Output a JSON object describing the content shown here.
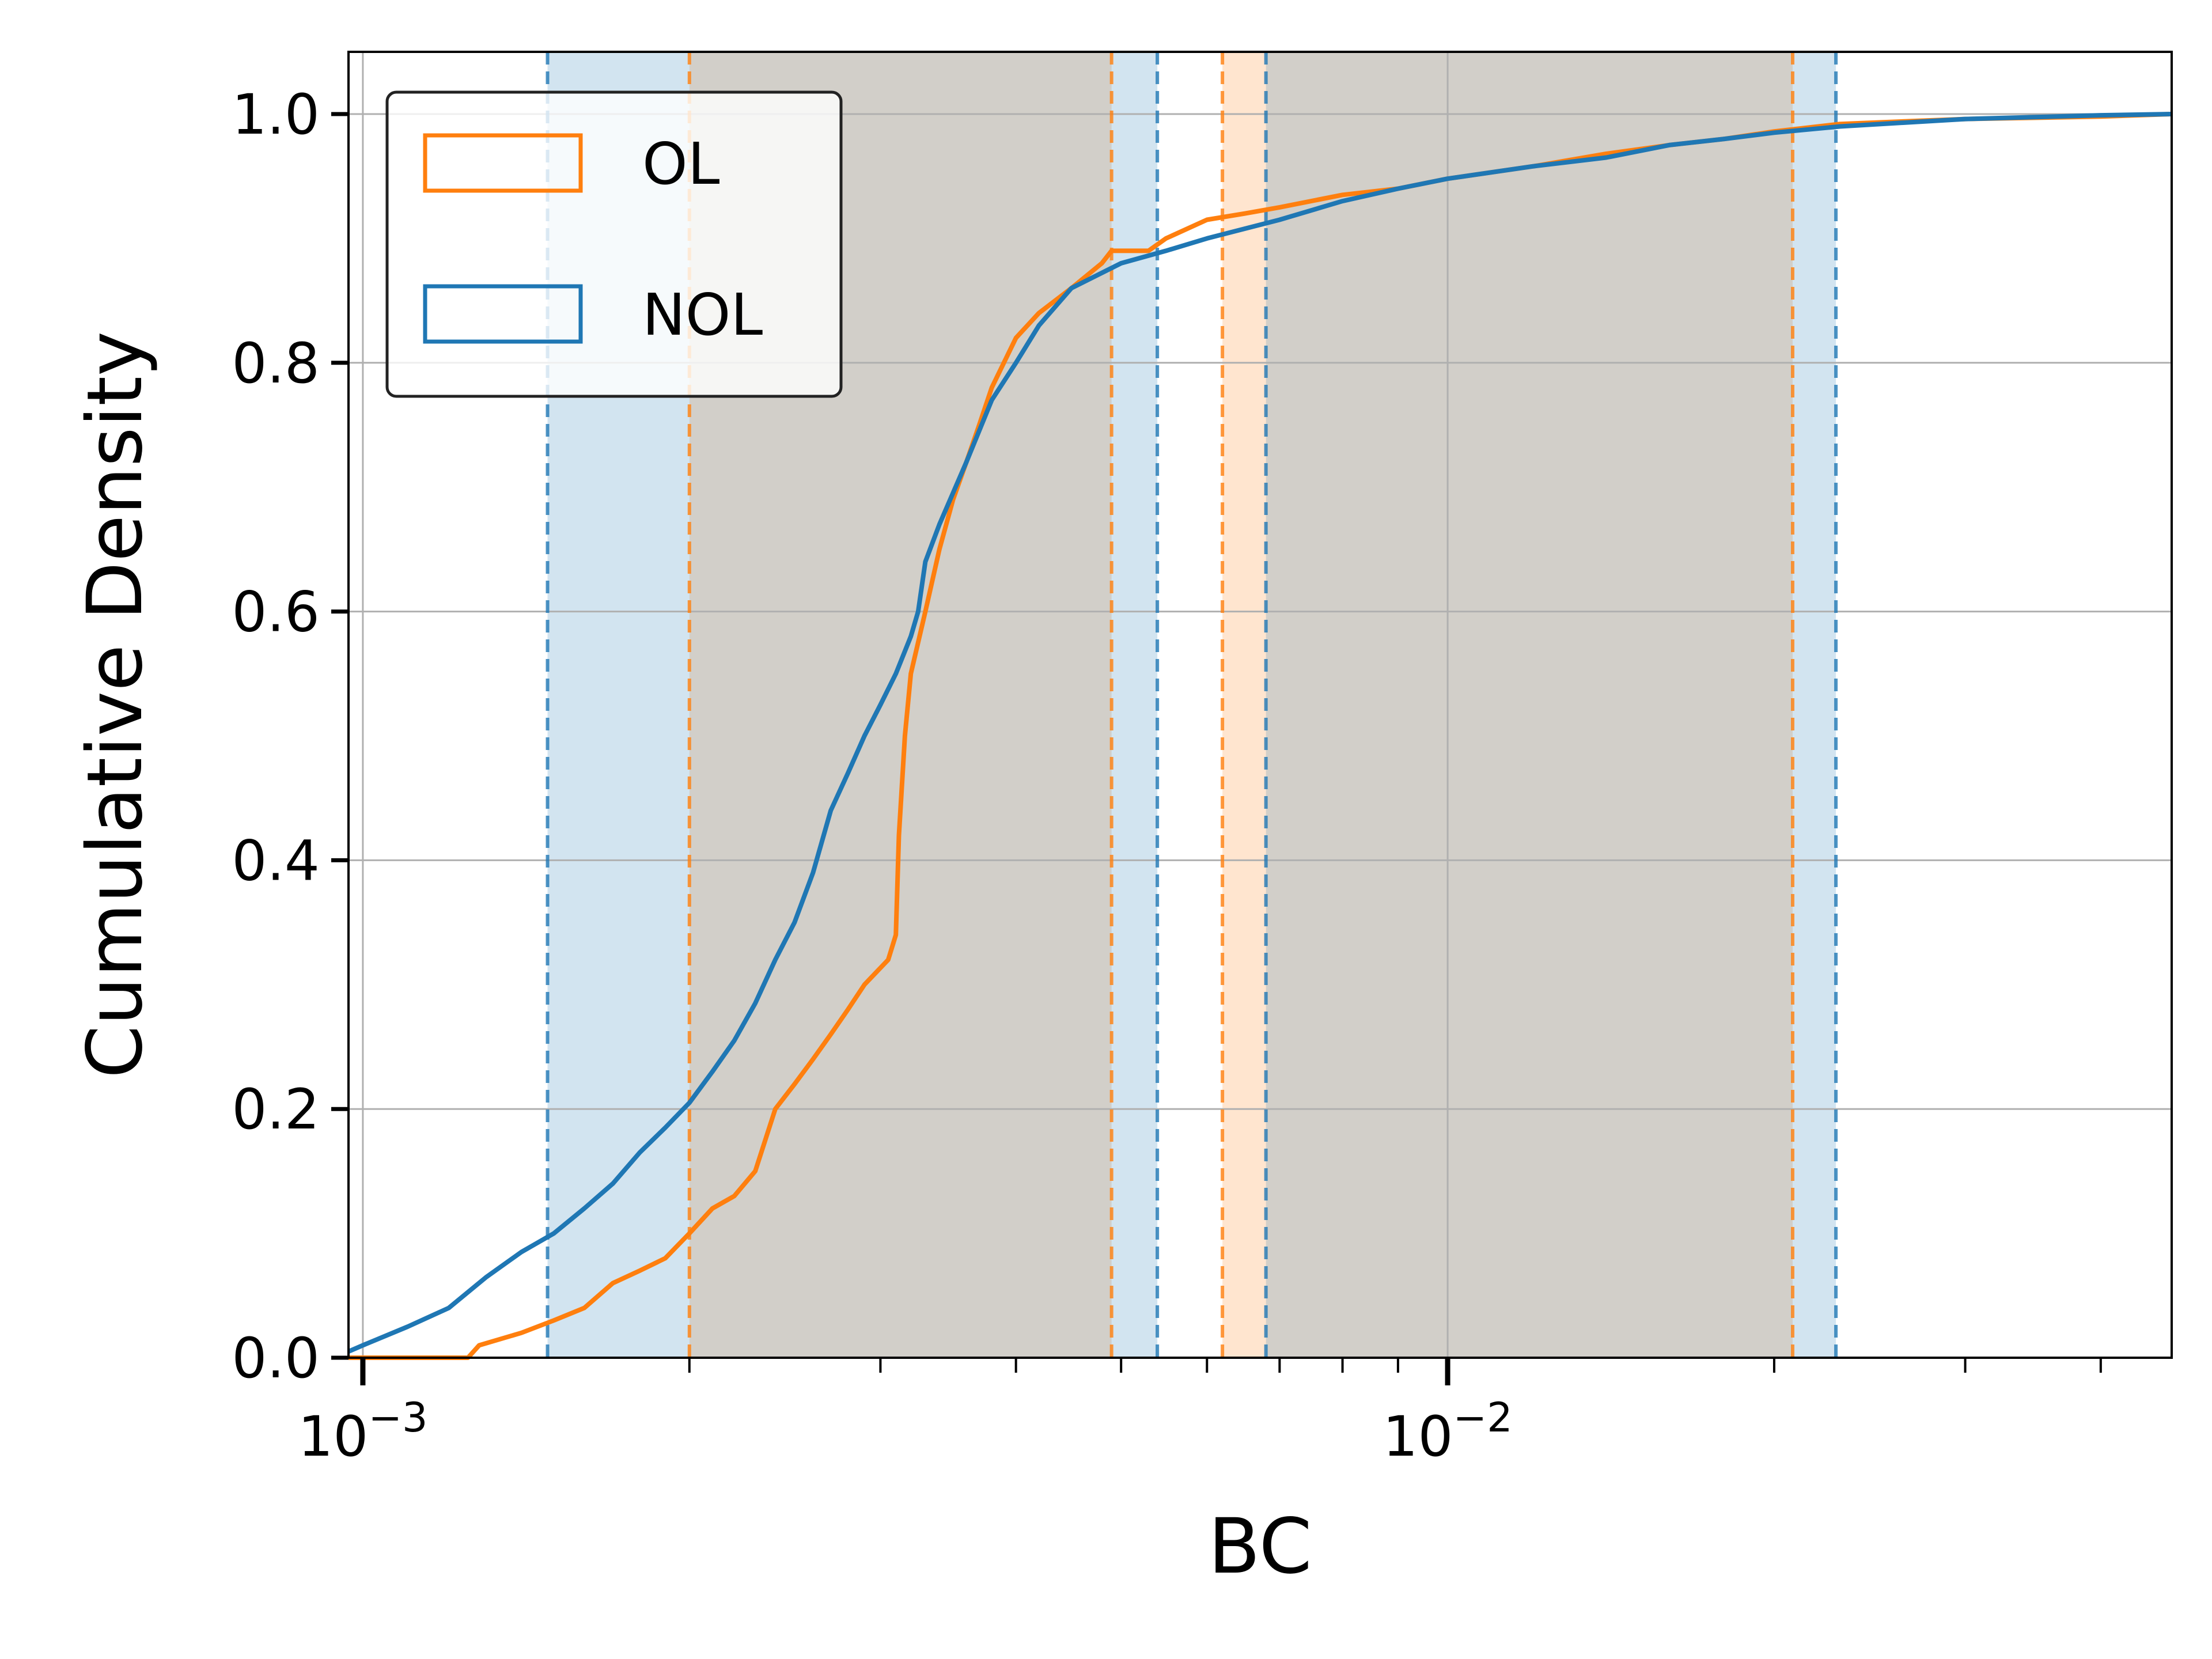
{
  "chart_data": {
    "type": "line",
    "xlabel": "BC",
    "ylabel": "Cumulative Density",
    "xscale": "log",
    "xlim": [
      0.00097,
      0.0465
    ],
    "ylim": [
      0,
      1.05
    ],
    "xticks": [
      {
        "value": 0.001,
        "base": "10",
        "exp": "−3"
      },
      {
        "value": 0.01,
        "base": "10",
        "exp": "−2"
      }
    ],
    "yticks": [
      {
        "value": 0.0,
        "label": "0.0"
      },
      {
        "value": 0.2,
        "label": "0.2"
      },
      {
        "value": 0.4,
        "label": "0.4"
      },
      {
        "value": 0.6,
        "label": "0.6"
      },
      {
        "value": 0.8,
        "label": "0.8"
      },
      {
        "value": 1.0,
        "label": "1.0"
      }
    ],
    "grid": true,
    "legend_position": "top-left",
    "series": [
      {
        "name": "OL",
        "color": "#ff7f0e",
        "bands": [
          [
            0.002,
            0.0049
          ],
          [
            0.0062,
            0.0208
          ]
        ],
        "points": [
          [
            0.00097,
            0.0
          ],
          [
            0.00125,
            0.0
          ],
          [
            0.00128,
            0.01
          ],
          [
            0.0014,
            0.02
          ],
          [
            0.0015,
            0.03
          ],
          [
            0.0016,
            0.04
          ],
          [
            0.0017,
            0.06
          ],
          [
            0.0018,
            0.07
          ],
          [
            0.0019,
            0.08
          ],
          [
            0.002,
            0.1
          ],
          [
            0.0021,
            0.12
          ],
          [
            0.0022,
            0.13
          ],
          [
            0.0023,
            0.15
          ],
          [
            0.0024,
            0.2
          ],
          [
            0.0025,
            0.22
          ],
          [
            0.0026,
            0.24
          ],
          [
            0.0027,
            0.26
          ],
          [
            0.0028,
            0.28
          ],
          [
            0.0029,
            0.3
          ],
          [
            0.00305,
            0.32
          ],
          [
            0.0031,
            0.34
          ],
          [
            0.00312,
            0.42
          ],
          [
            0.00316,
            0.5
          ],
          [
            0.0032,
            0.55
          ],
          [
            0.0033,
            0.6
          ],
          [
            0.0034,
            0.65
          ],
          [
            0.0035,
            0.69
          ],
          [
            0.0036,
            0.72
          ],
          [
            0.0037,
            0.75
          ],
          [
            0.0038,
            0.78
          ],
          [
            0.004,
            0.82
          ],
          [
            0.0042,
            0.84
          ],
          [
            0.0045,
            0.86
          ],
          [
            0.0048,
            0.88
          ],
          [
            0.0049,
            0.89
          ],
          [
            0.0053,
            0.89
          ],
          [
            0.0055,
            0.9
          ],
          [
            0.006,
            0.915
          ],
          [
            0.0065,
            0.92
          ],
          [
            0.007,
            0.925
          ],
          [
            0.008,
            0.935
          ],
          [
            0.009,
            0.94
          ],
          [
            0.01,
            0.948
          ],
          [
            0.012,
            0.958
          ],
          [
            0.014,
            0.968
          ],
          [
            0.016,
            0.975
          ],
          [
            0.018,
            0.98
          ],
          [
            0.02,
            0.986
          ],
          [
            0.023,
            0.992
          ],
          [
            0.03,
            0.996
          ],
          [
            0.04,
            0.998
          ],
          [
            0.0465,
            1.0
          ]
        ]
      },
      {
        "name": "NOL",
        "color": "#1f77b4",
        "bands": [
          [
            0.00148,
            0.0054
          ],
          [
            0.0068,
            0.0228
          ]
        ],
        "points": [
          [
            0.00097,
            0.005
          ],
          [
            0.001,
            0.01
          ],
          [
            0.0011,
            0.025
          ],
          [
            0.0012,
            0.04
          ],
          [
            0.0013,
            0.065
          ],
          [
            0.0014,
            0.085
          ],
          [
            0.0015,
            0.1
          ],
          [
            0.0016,
            0.12
          ],
          [
            0.0017,
            0.14
          ],
          [
            0.0018,
            0.165
          ],
          [
            0.0019,
            0.185
          ],
          [
            0.002,
            0.205
          ],
          [
            0.0021,
            0.23
          ],
          [
            0.0022,
            0.255
          ],
          [
            0.0023,
            0.285
          ],
          [
            0.0024,
            0.32
          ],
          [
            0.0025,
            0.35
          ],
          [
            0.0026,
            0.39
          ],
          [
            0.0027,
            0.44
          ],
          [
            0.0028,
            0.47
          ],
          [
            0.0029,
            0.5
          ],
          [
            0.003,
            0.525
          ],
          [
            0.0031,
            0.55
          ],
          [
            0.0032,
            0.58
          ],
          [
            0.00325,
            0.6
          ],
          [
            0.0033,
            0.64
          ],
          [
            0.0034,
            0.67
          ],
          [
            0.0036,
            0.72
          ],
          [
            0.0038,
            0.77
          ],
          [
            0.004,
            0.8
          ],
          [
            0.0042,
            0.83
          ],
          [
            0.0045,
            0.86
          ],
          [
            0.005,
            0.88
          ],
          [
            0.0055,
            0.89
          ],
          [
            0.006,
            0.9
          ],
          [
            0.007,
            0.915
          ],
          [
            0.008,
            0.93
          ],
          [
            0.009,
            0.94
          ],
          [
            0.01,
            0.948
          ],
          [
            0.012,
            0.958
          ],
          [
            0.014,
            0.965
          ],
          [
            0.016,
            0.975
          ],
          [
            0.018,
            0.98
          ],
          [
            0.02,
            0.985
          ],
          [
            0.023,
            0.99
          ],
          [
            0.03,
            0.996
          ],
          [
            0.04,
            0.999
          ],
          [
            0.0465,
            1.0
          ]
        ]
      }
    ]
  }
}
